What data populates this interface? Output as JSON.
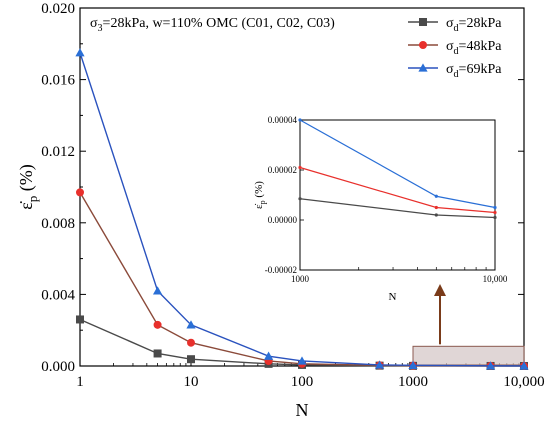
{
  "chart_data": [
    {
      "type": "line",
      "condition_text": "σ3=28kPa, w=110% OMC (C01, C02, C03)",
      "x_label": "N",
      "y_label": "ε̇p (%)",
      "x_scale": "log",
      "xlim": [
        1,
        10000
      ],
      "ylim": [
        0,
        0.02
      ],
      "x_ticks": [
        {
          "value": 1,
          "label": "1"
        },
        {
          "value": 10,
          "label": "10"
        },
        {
          "value": 100,
          "label": "100"
        },
        {
          "value": 1000,
          "label": "1000"
        },
        {
          "value": 10000,
          "label": "10,000"
        }
      ],
      "y_ticks": [
        {
          "value": 0,
          "label": "0.000"
        },
        {
          "value": 0.004,
          "label": "0.004"
        },
        {
          "value": 0.008,
          "label": "0.008"
        },
        {
          "value": 0.012,
          "label": "0.012"
        },
        {
          "value": 0.016,
          "label": "0.016"
        },
        {
          "value": 0.02,
          "label": "0.020"
        }
      ],
      "legend_position": "top-right",
      "x": [
        1,
        5,
        10,
        50,
        100,
        500,
        1000,
        5000,
        10000
      ],
      "series": [
        {
          "name": "σd=28kPa",
          "color": "#4a4a4a",
          "marker": "square",
          "values": [
            0.0026,
            0.0007,
            0.00038,
            0.00012,
            6e-05,
            2e-05,
            8e-06,
            2e-06,
            1e-06
          ]
        },
        {
          "name": "σd=48kPa",
          "color": "#e8302c",
          "line_color": "#8b4a3a",
          "marker": "circle",
          "values": [
            0.0097,
            0.0023,
            0.0013,
            0.00028,
            0.00012,
            4e-05,
            2e-05,
            5e-06,
            3e-06
          ]
        },
        {
          "name": "σd=69kPa",
          "color": "#2a6fd6",
          "line_color": "#2a52be",
          "marker": "triangle",
          "values": [
            0.0175,
            0.0042,
            0.0023,
            0.00055,
            0.00028,
            6e-05,
            4e-05,
            9e-06,
            5e-06
          ]
        }
      ]
    },
    {
      "type": "line",
      "x_label": "N",
      "y_label": "ε̇p (%)",
      "x_scale": "log",
      "xlim": [
        1000,
        10000
      ],
      "ylim": [
        -2e-05,
        4e-05
      ],
      "x_ticks": [
        {
          "value": 1000,
          "label": "1000"
        },
        {
          "value": 10000,
          "label": "10,000"
        }
      ],
      "y_ticks": [
        {
          "value": -2e-05,
          "label": "-0.00002"
        },
        {
          "value": 0,
          "label": "0.00000"
        },
        {
          "value": 2e-05,
          "label": "0.00002"
        },
        {
          "value": 4e-05,
          "label": "0.00004"
        }
      ],
      "x": [
        1000,
        5000,
        10000
      ],
      "series": [
        {
          "color": "#4a4a4a",
          "values": [
            8.5e-06,
            2e-06,
            1e-06
          ]
        },
        {
          "color": "#e8302c",
          "values": [
            2.1e-05,
            5e-06,
            3e-06
          ]
        },
        {
          "color": "#2a6fd6",
          "values": [
            4e-05,
            9.5e-06,
            5e-06
          ]
        }
      ]
    }
  ]
}
